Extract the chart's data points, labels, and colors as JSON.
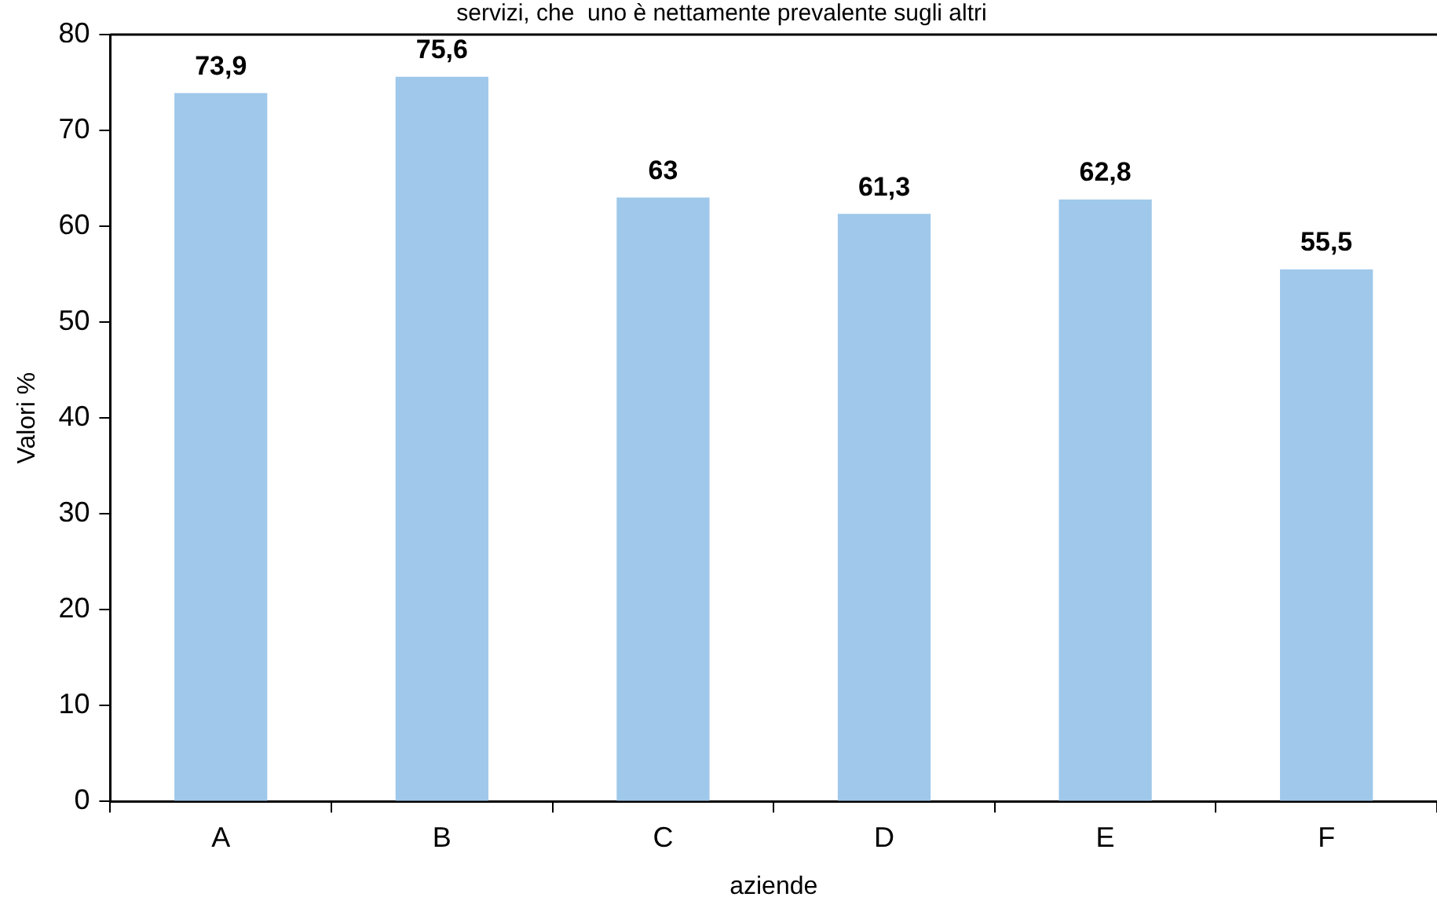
{
  "chart_data": {
    "type": "bar",
    "title": "servizi, che  uno è nettamente prevalente sugli altri",
    "xlabel": "aziende",
    "ylabel": "Valori %",
    "categories": [
      "A",
      "B",
      "C",
      "D",
      "E",
      "F"
    ],
    "values": [
      73.9,
      75.6,
      63,
      61.3,
      62.8,
      55.5
    ],
    "value_labels": [
      "73,9",
      "75,6",
      "63",
      "61,3",
      "62,8",
      "55,5"
    ],
    "color": "#9fc8ea",
    "ylim": [
      0,
      80
    ],
    "yticks": [
      0,
      10,
      20,
      30,
      40,
      50,
      60,
      70,
      80
    ],
    "grid": false,
    "legend": false
  }
}
